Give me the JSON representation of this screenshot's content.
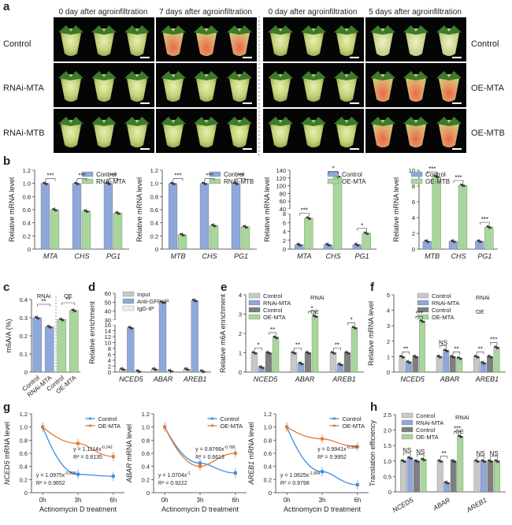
{
  "panel_letters": {
    "a": "a",
    "b": "b",
    "c": "c",
    "d": "d",
    "e": "e",
    "f": "f",
    "g": "g",
    "h": "h"
  },
  "panel_a": {
    "col_titles": [
      "0 day after agroinfiltration",
      "7 days after agroinfiltration",
      "0 day after agroinfiltration",
      "5 days after agroinfiltration"
    ],
    "row_labels_left": [
      "Control",
      "RNAi-MTA",
      "RNAi-MTB"
    ],
    "row_labels_right": [
      "Control",
      "OE-MTA",
      "OE-MTB"
    ]
  },
  "common": {
    "rel_mrna": "Relative mRNA level",
    "actinomycin": "Actinomycin D treatment",
    "rnai": "RNAi",
    "oe": "OE"
  },
  "chart_data": [
    {
      "id": "b1",
      "type": "bar",
      "categories": [
        "MTA",
        "CHS",
        "PG1"
      ],
      "series": [
        {
          "name": "Control",
          "values": [
            1.0,
            1.0,
            1.0
          ]
        },
        {
          "name": "RNAi-MTA",
          "values": [
            0.6,
            0.58,
            0.55
          ]
        }
      ],
      "ylabel": "Relative mRNA level",
      "ylim": [
        0,
        1.2
      ],
      "yticks": [
        "0",
        "0.2",
        "0.4",
        "0.6",
        "0.8",
        "1.0",
        "1.2"
      ],
      "sig": [
        "***",
        "***",
        "***"
      ]
    },
    {
      "id": "b2",
      "type": "bar",
      "categories": [
        "MTB",
        "CHS",
        "PG1"
      ],
      "series": [
        {
          "name": "Control",
          "values": [
            1.0,
            1.0,
            1.0
          ]
        },
        {
          "name": "RNAi-MTB",
          "values": [
            0.22,
            0.36,
            0.34
          ]
        }
      ],
      "ylabel": "Relative mRNA level",
      "ylim": [
        0,
        1.2
      ],
      "yticks": [
        "0",
        "0.2",
        "0.4",
        "0.6",
        "0.8",
        "1.0",
        "1.2"
      ],
      "sig": [
        "***",
        "***",
        "***"
      ]
    },
    {
      "id": "b3",
      "type": "bar",
      "categories": [
        "MTA",
        "CHS",
        "PG1"
      ],
      "series": [
        {
          "name": "Control",
          "values": [
            1.0,
            1.0,
            1.0
          ]
        },
        {
          "name": "OE-MTA",
          "values": [
            7.0,
            125,
            3.6
          ]
        }
      ],
      "ylabel": "Relative mRNA level",
      "broken": true,
      "yticks": [
        "0",
        "2",
        "4",
        "6",
        "8",
        "40",
        "60",
        "80",
        "100",
        "120",
        "140"
      ],
      "sig": [
        "***",
        "*",
        "*"
      ]
    },
    {
      "id": "b4",
      "type": "bar",
      "categories": [
        "MTB",
        "CHS",
        "PG1"
      ],
      "series": [
        {
          "name": "Control",
          "values": [
            1.0,
            1.0,
            1.0
          ]
        },
        {
          "name": "OE-MTB",
          "values": [
            9.2,
            8.1,
            2.8
          ]
        }
      ],
      "ylabel": "Relative mRNA level",
      "ylim": [
        0,
        10
      ],
      "yticks": [
        "0",
        "2",
        "4",
        "6",
        "8",
        "10"
      ],
      "sig": [
        "***",
        "***",
        "***"
      ]
    },
    {
      "id": "c",
      "type": "bar",
      "categories": [
        "Control",
        "RNAi-MTA",
        "Control",
        "OE-MTA"
      ],
      "values": [
        0.3,
        0.25,
        0.29,
        0.34
      ],
      "ylabel": "m6A/A (%)",
      "ylim": [
        0,
        0.4
      ],
      "yticks": [
        "0",
        "0.1",
        "0.2",
        "0.3",
        "0.4"
      ],
      "group_labels": [
        "RNAi",
        "OE"
      ],
      "sig": [
        "**",
        "**"
      ]
    },
    {
      "id": "d",
      "type": "bar",
      "categories": [
        "NCED5",
        "ABAR",
        "AREB1"
      ],
      "series": [
        {
          "name": "Input",
          "values": [
            1,
            1,
            1
          ]
        },
        {
          "name": "Anti-GFP-IP",
          "values": [
            15,
            50,
            52
          ]
        },
        {
          "name": "IgG-IP",
          "values": [
            0.3,
            0.4,
            0.3
          ]
        }
      ],
      "ylabel": "Relative enrichment",
      "broken": true,
      "yticks": [
        "0",
        "2",
        "4",
        "6",
        "8",
        "10",
        "12",
        "14",
        "16",
        "30",
        "40",
        "50",
        "60"
      ]
    },
    {
      "id": "e",
      "type": "bar",
      "categories": [
        "NCED5",
        "ABAR",
        "AREB1"
      ],
      "series": [
        {
          "name": "Control",
          "values": [
            1.0,
            1.0,
            1.0
          ]
        },
        {
          "name": "RNAi-MTA",
          "values": [
            0.25,
            0.45,
            0.4
          ]
        },
        {
          "name": "Control",
          "values": [
            1.0,
            1.0,
            1.0
          ]
        },
        {
          "name": "OE-MTA",
          "values": [
            1.8,
            2.9,
            2.3
          ]
        }
      ],
      "ylabel": "Relative m6A enrichment",
      "ylim": [
        0,
        4
      ],
      "yticks": [
        "0",
        "1",
        "2",
        "3",
        "4"
      ],
      "sig": [
        "*",
        "**",
        "**",
        "*",
        "**",
        "*"
      ]
    },
    {
      "id": "f",
      "type": "bar",
      "categories": [
        "NCED5",
        "ABAR",
        "AREB1"
      ],
      "series": [
        {
          "name": "Control",
          "values": [
            1.0,
            1.0,
            1.0
          ]
        },
        {
          "name": "RNAi-MTA",
          "values": [
            0.65,
            1.4,
            0.6
          ]
        },
        {
          "name": "Control",
          "values": [
            1.0,
            1.0,
            1.0
          ]
        },
        {
          "name": "OE-MTA",
          "values": [
            3.3,
            0.9,
            1.6
          ]
        }
      ],
      "ylabel": "Relative mRNA level",
      "ylim": [
        0,
        5
      ],
      "yticks": [
        "0",
        "1",
        "2",
        "3",
        "4",
        "5"
      ],
      "sig": [
        "**",
        "***",
        "NS",
        "**",
        "**",
        "***"
      ]
    },
    {
      "id": "g1",
      "type": "scatter",
      "x": [
        "0h",
        "3h",
        "6h"
      ],
      "series": [
        {
          "name": "Control",
          "values": [
            1.0,
            0.28,
            0.25
          ]
        },
        {
          "name": "OE-MTA",
          "values": [
            1.0,
            0.75,
            0.55
          ]
        }
      ],
      "ylabel": "NCED5 mRNA level",
      "xlabel": "Actinomycin D treatment",
      "yticks": [
        "0",
        "0.2",
        "0.4",
        "0.6",
        "0.8",
        "1.0",
        "1.2"
      ],
      "eq": [
        "y = 1.1114x",
        "R² = 0.8135",
        "y = 1.0975x",
        "R² = 0.9652"
      ],
      "exp": [
        "-0.242",
        "-0.898"
      ]
    },
    {
      "id": "g2",
      "type": "scatter",
      "x": [
        "0h",
        "3h",
        "6h"
      ],
      "series": [
        {
          "name": "Control",
          "values": [
            1.0,
            0.45,
            0.3
          ]
        },
        {
          "name": "OE-MTA",
          "values": [
            1.0,
            0.4,
            0.6
          ]
        }
      ],
      "ylabel": "ABAR mRNA level",
      "xlabel": "Actinomycin D treatment",
      "yticks": [
        "0",
        "0.2",
        "0.4",
        "0.6",
        "0.8",
        "1.0",
        "1.2"
      ],
      "eq": [
        "y = 0.8766x",
        "R² = 0.6613",
        "y = 1.0704x",
        "R² = 0.9222"
      ],
      "exp": [
        "-0.786",
        "-1"
      ]
    },
    {
      "id": "g3",
      "type": "scatter",
      "x": [
        "0h",
        "3h",
        "6h"
      ],
      "series": [
        {
          "name": "Control",
          "values": [
            1.0,
            0.32,
            0.12
          ]
        },
        {
          "name": "OE-MTA",
          "values": [
            1.0,
            0.82,
            0.7
          ]
        }
      ],
      "ylabel": "AREB1 mRNA level",
      "xlabel": "Actinomycin D treatment",
      "yticks": [
        "0",
        "0.2",
        "0.4",
        "0.6",
        "0.8",
        "1.0",
        "1.2"
      ],
      "eq": [
        "y = 0.9941x",
        "R² = 0.9952",
        "y = 1.0625x",
        "R² = 0.9798"
      ],
      "exp": [
        "-0.399",
        "-1.804"
      ]
    },
    {
      "id": "h",
      "type": "bar",
      "categories": [
        "NCED5",
        "ABAR",
        "AREB1"
      ],
      "series": [
        {
          "name": "Control",
          "values": [
            1.0,
            1.0,
            1.0
          ]
        },
        {
          "name": "RNAi-MTA",
          "values": [
            1.1,
            0.3,
            1.0
          ]
        },
        {
          "name": "Control",
          "values": [
            1.0,
            1.0,
            1.0
          ]
        },
        {
          "name": "OE-MTA",
          "values": [
            1.05,
            1.8,
            1.0
          ]
        }
      ],
      "ylabel": "Translation efficiency",
      "ylim": [
        0,
        2.5
      ],
      "yticks": [
        "0",
        "0.5",
        "1.0",
        "1.5",
        "2.0",
        "2.5"
      ],
      "sig": [
        "NS",
        "NS",
        "**",
        "***",
        "NS",
        "NS"
      ]
    }
  ],
  "colors": {
    "blue": "#8fa8db",
    "green": "#a8d69b",
    "gray": "#c8c8c8",
    "darkgray": "#7f7f7f",
    "bluefit": "#3b8ee0",
    "orangefit": "#e07b39"
  }
}
